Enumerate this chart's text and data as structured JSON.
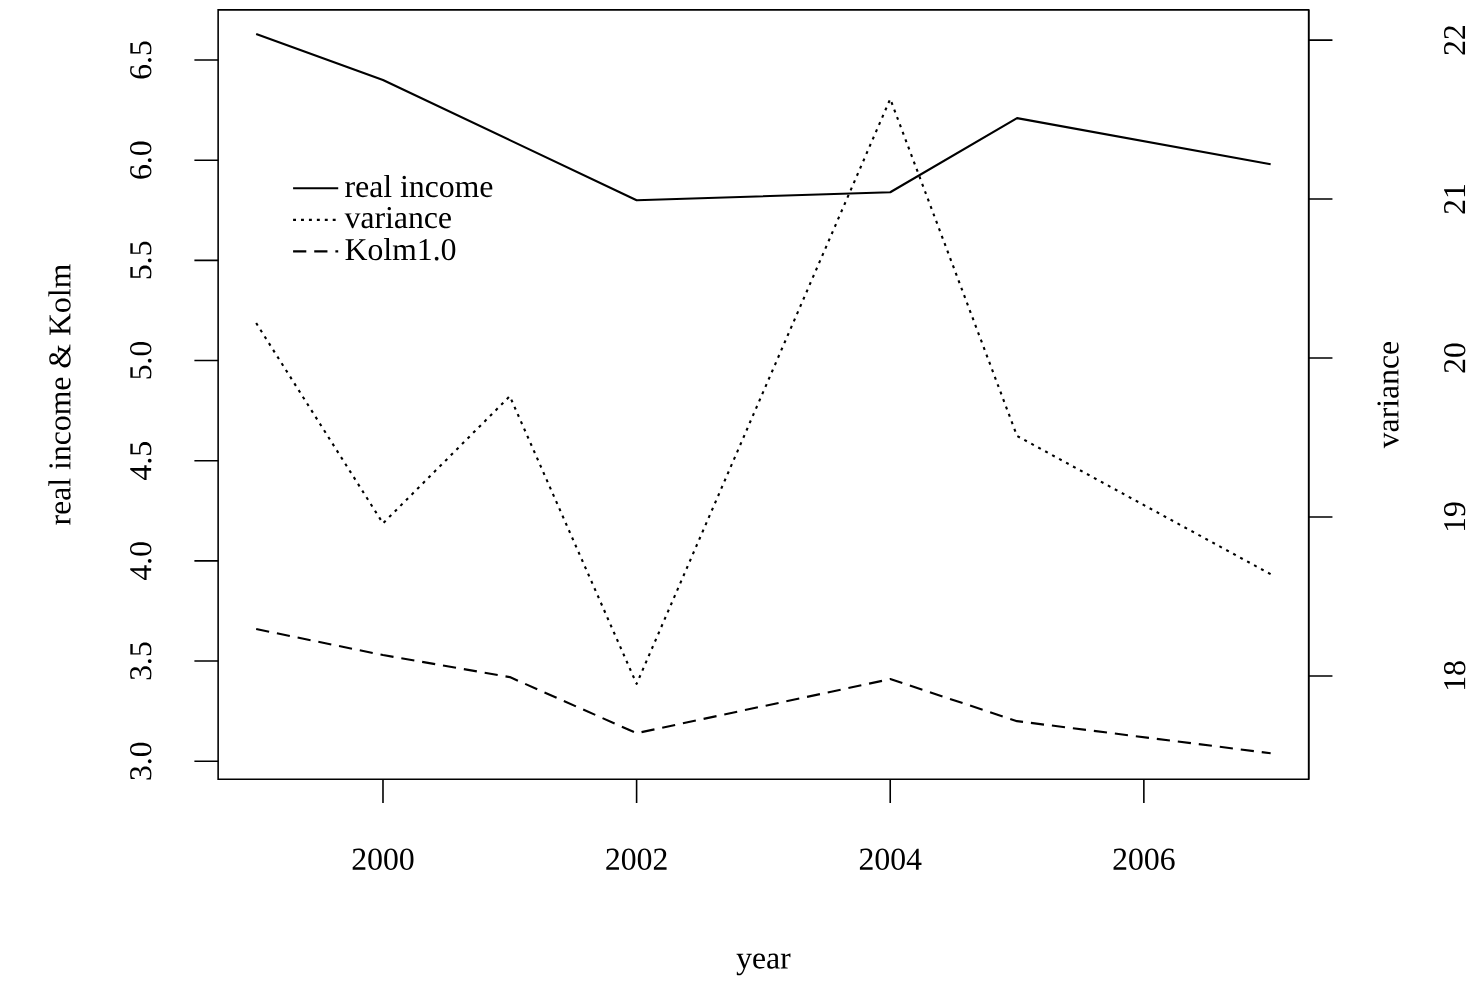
{
  "chart_data": {
    "type": "line",
    "xlabel": "year",
    "ylabel": "real income & Kolm",
    "y2label": "variance",
    "x": [
      1999,
      2000,
      2001,
      2002,
      2004,
      2005,
      2007
    ],
    "series": [
      {
        "name": "real income",
        "color": "#000000",
        "line_style": "solid",
        "values": [
          6.63,
          6.4,
          6.1,
          5.8,
          5.84,
          6.21,
          5.98
        ]
      },
      {
        "name": "variance",
        "color": "#000000",
        "line_style": "dotted",
        "axis": "y2",
        "values": [
          20.22,
          18.96,
          19.76,
          17.95,
          21.63,
          19.51,
          18.64
        ]
      },
      {
        "name": "Kolm1.0",
        "color": "#000000",
        "line_style": "dashed",
        "values": [
          3.66,
          3.53,
          3.42,
          3.14,
          3.41,
          3.2,
          3.04
        ]
      }
    ],
    "xlim": [
      1998.7,
      2007.3
    ],
    "xticks": [
      2000,
      2002,
      2004,
      2006
    ],
    "ylim": [
      2.91,
      6.75
    ],
    "yticks": [
      {
        "value": 3,
        "label": "3.0"
      },
      {
        "value": 3.5,
        "label": "3.5"
      },
      {
        "value": 4,
        "label": "4.0"
      },
      {
        "value": 4.5,
        "label": "4.5"
      },
      {
        "value": 5,
        "label": "5.0"
      },
      {
        "value": 5.5,
        "label": "5.5"
      },
      {
        "value": 6,
        "label": "6.0"
      },
      {
        "value": 6.5,
        "label": "6.5"
      }
    ],
    "y2lim": [
      17.35,
      22.19
    ],
    "y2ticks": [
      18,
      19,
      20,
      21,
      22
    ],
    "legend": "top left",
    "marker": "none"
  }
}
